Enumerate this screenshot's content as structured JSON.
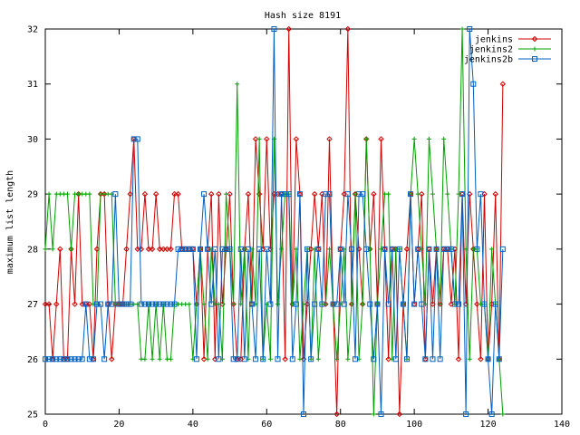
{
  "chart_data": {
    "type": "line",
    "title": "Hash size 8191",
    "ylabel": "maximum list length",
    "xlim": [
      0,
      140
    ],
    "ylim": [
      25,
      32
    ],
    "xticks": [
      0,
      20,
      40,
      60,
      80,
      100,
      120,
      140
    ],
    "yticks": [
      25,
      26,
      27,
      28,
      29,
      30,
      31,
      32
    ],
    "grid": false,
    "legend_position": "top-right",
    "series": [
      {
        "name": "jenkins",
        "color": "#d40000",
        "marker": "diamond",
        "x": [
          0,
          1,
          2,
          3,
          4,
          5,
          6,
          7,
          8,
          9,
          10,
          11,
          12,
          13,
          14,
          15,
          16,
          17,
          18,
          19,
          20,
          21,
          22,
          23,
          24,
          25,
          26,
          27,
          28,
          29,
          30,
          31,
          32,
          33,
          34,
          35,
          36,
          37,
          38,
          39,
          40,
          41,
          42,
          43,
          44,
          45,
          46,
          47,
          48,
          49,
          50,
          51,
          52,
          53,
          54,
          55,
          56,
          57,
          58,
          59,
          60,
          61,
          62,
          63,
          64,
          65,
          66,
          67,
          68,
          69,
          70,
          71,
          72,
          73,
          74,
          75,
          76,
          77,
          78,
          79,
          80,
          81,
          82,
          83,
          84,
          85,
          86,
          87,
          88,
          89,
          90,
          91,
          92,
          93,
          94,
          95,
          96,
          97,
          98,
          99,
          100,
          101,
          102,
          103,
          104,
          105,
          106,
          107,
          108,
          109,
          110,
          111,
          112,
          113,
          114,
          115,
          116,
          117,
          118,
          119,
          120,
          121,
          122,
          123,
          124
        ],
        "y": [
          27,
          27,
          26,
          27,
          28,
          26,
          26,
          28,
          27,
          29,
          27,
          27,
          27,
          26,
          28,
          29,
          29,
          27,
          26,
          27,
          27,
          27,
          28,
          29,
          30,
          28,
          28,
          29,
          28,
          28,
          29,
          28,
          28,
          28,
          28,
          29,
          29,
          28,
          28,
          28,
          28,
          27,
          28,
          26,
          28,
          29,
          26,
          29,
          27,
          28,
          29,
          27,
          26,
          26,
          28,
          29,
          27,
          30,
          29,
          28,
          30,
          28,
          29,
          29,
          29,
          26,
          32,
          27,
          30,
          29,
          26,
          27,
          28,
          29,
          28,
          29,
          27,
          30,
          27,
          25,
          28,
          29,
          32,
          27,
          29,
          28,
          27,
          30,
          28,
          29,
          27,
          30,
          28,
          26,
          28,
          28,
          25,
          27,
          28,
          29,
          27,
          28,
          29,
          26,
          28,
          27,
          28,
          27,
          28,
          28,
          27,
          28,
          26,
          29,
          27,
          29,
          28,
          27,
          26,
          29,
          26,
          27,
          29,
          26,
          31
        ]
      },
      {
        "name": "jenkins2",
        "color": "#00a000",
        "marker": "plus",
        "x": [
          0,
          1,
          2,
          3,
          4,
          5,
          6,
          7,
          8,
          9,
          10,
          11,
          12,
          13,
          14,
          15,
          16,
          17,
          18,
          19,
          20,
          21,
          22,
          23,
          24,
          25,
          26,
          27,
          28,
          29,
          30,
          31,
          32,
          33,
          34,
          35,
          36,
          37,
          38,
          39,
          40,
          41,
          42,
          43,
          44,
          45,
          46,
          47,
          48,
          49,
          50,
          51,
          52,
          53,
          54,
          55,
          56,
          57,
          58,
          59,
          60,
          61,
          62,
          63,
          64,
          65,
          66,
          67,
          68,
          69,
          70,
          71,
          72,
          73,
          74,
          75,
          76,
          77,
          78,
          79,
          80,
          81,
          82,
          83,
          84,
          85,
          86,
          87,
          88,
          89,
          90,
          91,
          92,
          93,
          94,
          95,
          96,
          97,
          98,
          99,
          100,
          101,
          102,
          103,
          104,
          105,
          106,
          107,
          108,
          109,
          110,
          111,
          112,
          113,
          114,
          115,
          116,
          117,
          118,
          119,
          120,
          121,
          122,
          123,
          124
        ],
        "y": [
          28,
          29,
          28,
          29,
          29,
          29,
          29,
          28,
          29,
          29,
          29,
          29,
          29,
          27,
          27,
          29,
          29,
          29,
          29,
          27,
          27,
          27,
          27,
          27,
          27,
          27,
          26,
          26,
          27,
          26,
          27,
          26,
          27,
          26,
          26,
          27,
          27,
          27,
          27,
          27,
          26,
          27,
          28,
          27,
          26,
          28,
          27,
          27,
          26,
          29,
          28,
          27,
          31,
          27,
          28,
          26,
          28,
          27,
          30,
          26,
          27,
          26,
          30,
          27,
          28,
          29,
          29,
          27,
          28,
          26,
          27,
          28,
          26,
          28,
          26,
          27,
          27,
          28,
          27,
          26,
          27,
          28,
          26,
          27,
          29,
          26,
          27,
          30,
          28,
          25,
          27,
          28,
          29,
          29,
          26,
          28,
          28,
          27,
          26,
          29,
          30,
          29,
          28,
          27,
          30,
          29,
          28,
          27,
          30,
          29,
          28,
          27,
          29,
          32,
          28,
          26,
          28,
          28,
          27,
          27,
          26,
          28,
          27,
          26,
          25
        ]
      },
      {
        "name": "jenkins2b",
        "color": "#0060c0",
        "marker": "square",
        "x": [
          0,
          1,
          2,
          3,
          4,
          5,
          6,
          7,
          8,
          9,
          10,
          11,
          12,
          13,
          14,
          15,
          16,
          17,
          18,
          19,
          20,
          21,
          22,
          23,
          24,
          25,
          26,
          27,
          28,
          29,
          30,
          31,
          32,
          33,
          34,
          35,
          36,
          37,
          38,
          39,
          40,
          41,
          42,
          43,
          44,
          45,
          46,
          47,
          48,
          49,
          50,
          51,
          52,
          53,
          54,
          55,
          56,
          57,
          58,
          59,
          60,
          61,
          62,
          63,
          64,
          65,
          66,
          67,
          68,
          69,
          70,
          71,
          72,
          73,
          74,
          75,
          76,
          77,
          78,
          79,
          80,
          81,
          82,
          83,
          84,
          85,
          86,
          87,
          88,
          89,
          90,
          91,
          92,
          93,
          94,
          95,
          96,
          97,
          98,
          99,
          100,
          101,
          102,
          103,
          104,
          105,
          106,
          107,
          108,
          109,
          110,
          111,
          112,
          113,
          114,
          115,
          116,
          117,
          118,
          119,
          120,
          121,
          122,
          123,
          124
        ],
        "y": [
          26,
          26,
          26,
          26,
          26,
          26,
          26,
          26,
          26,
          26,
          26,
          27,
          26,
          26,
          27,
          27,
          26,
          27,
          27,
          29,
          27,
          27,
          27,
          27,
          30,
          30,
          27,
          27,
          27,
          27,
          27,
          27,
          27,
          27,
          27,
          27,
          28,
          28,
          28,
          28,
          28,
          26,
          28,
          29,
          28,
          27,
          28,
          26,
          28,
          28,
          28,
          26,
          26,
          28,
          26,
          28,
          27,
          26,
          28,
          26,
          28,
          27,
          32,
          26,
          29,
          29,
          29,
          26,
          27,
          29,
          25,
          28,
          26,
          27,
          28,
          27,
          29,
          29,
          27,
          27,
          28,
          27,
          29,
          28,
          26,
          29,
          29,
          28,
          27,
          26,
          27,
          25,
          28,
          27,
          28,
          26,
          28,
          27,
          26,
          29,
          27,
          28,
          27,
          26,
          28,
          26,
          28,
          26,
          28,
          28,
          28,
          27,
          27,
          29,
          25,
          32,
          31,
          28,
          29,
          27,
          26,
          25,
          27,
          26,
          28
        ]
      }
    ]
  }
}
